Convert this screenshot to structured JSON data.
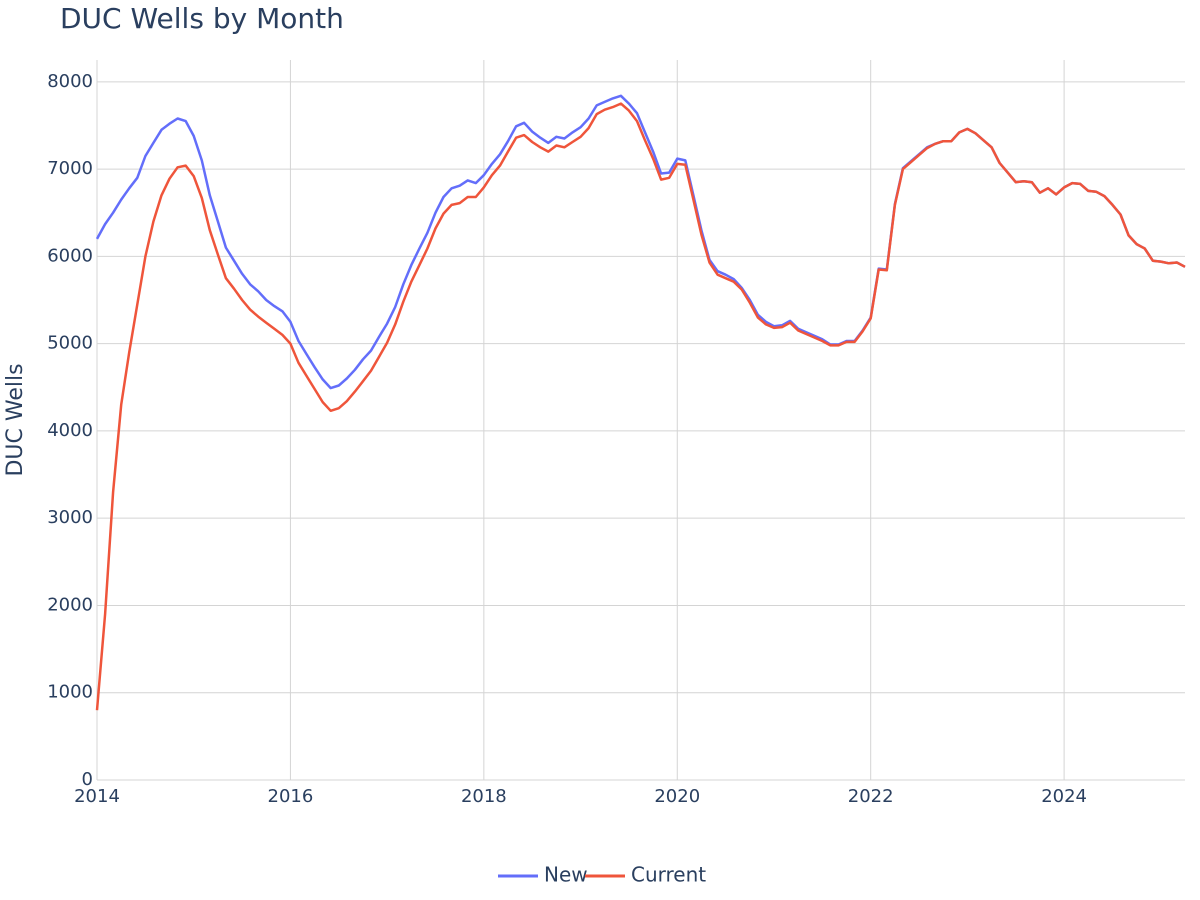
{
  "chart_data": {
    "type": "line",
    "title": "DUC Wells by Month",
    "y_label": "DUC Wells",
    "x": [
      "2014-01",
      "2014-02",
      "2014-03",
      "2014-04",
      "2014-05",
      "2014-06",
      "2014-07",
      "2014-08",
      "2014-09",
      "2014-10",
      "2014-11",
      "2014-12",
      "2015-01",
      "2015-02",
      "2015-03",
      "2015-04",
      "2015-05",
      "2015-06",
      "2015-07",
      "2015-08",
      "2015-09",
      "2015-10",
      "2015-11",
      "2015-12",
      "2016-01",
      "2016-02",
      "2016-03",
      "2016-04",
      "2016-05",
      "2016-06",
      "2016-07",
      "2016-08",
      "2016-09",
      "2016-10",
      "2016-11",
      "2016-12",
      "2017-01",
      "2017-02",
      "2017-03",
      "2017-04",
      "2017-05",
      "2017-06",
      "2017-07",
      "2017-08",
      "2017-09",
      "2017-10",
      "2017-11",
      "2017-12",
      "2018-01",
      "2018-02",
      "2018-03",
      "2018-04",
      "2018-05",
      "2018-06",
      "2018-07",
      "2018-08",
      "2018-09",
      "2018-10",
      "2018-11",
      "2018-12",
      "2019-01",
      "2019-02",
      "2019-03",
      "2019-04",
      "2019-05",
      "2019-06",
      "2019-07",
      "2019-08",
      "2019-09",
      "2019-10",
      "2019-11",
      "2019-12",
      "2020-01",
      "2020-02",
      "2020-03",
      "2020-04",
      "2020-05",
      "2020-06",
      "2020-07",
      "2020-08",
      "2020-09",
      "2020-10",
      "2020-11",
      "2020-12",
      "2021-01",
      "2021-02",
      "2021-03",
      "2021-04",
      "2021-05",
      "2021-06",
      "2021-07",
      "2021-08",
      "2021-09",
      "2021-10",
      "2021-11",
      "2021-12",
      "2022-01",
      "2022-02",
      "2022-03",
      "2022-04",
      "2022-05",
      "2022-06",
      "2022-07",
      "2022-08",
      "2022-09",
      "2022-10",
      "2022-11",
      "2022-12",
      "2023-01",
      "2023-02",
      "2023-03",
      "2023-04",
      "2023-05",
      "2023-06",
      "2023-07",
      "2023-08",
      "2023-09",
      "2023-10",
      "2023-11",
      "2023-12",
      "2024-01",
      "2024-02",
      "2024-03",
      "2024-04",
      "2024-05",
      "2024-06",
      "2024-07",
      "2024-08",
      "2024-09",
      "2024-10",
      "2024-11",
      "2024-12",
      "2025-01",
      "2025-02",
      "2025-03",
      "2025-04"
    ],
    "series": [
      {
        "name": "New",
        "color": "#636efa",
        "values": [
          6200,
          6370,
          6500,
          6650,
          6780,
          6900,
          7150,
          7300,
          7450,
          7520,
          7580,
          7550,
          7380,
          7100,
          6700,
          6400,
          6100,
          5950,
          5800,
          5680,
          5600,
          5500,
          5430,
          5370,
          5250,
          5030,
          4880,
          4730,
          4590,
          4490,
          4520,
          4600,
          4700,
          4820,
          4920,
          5080,
          5230,
          5420,
          5680,
          5900,
          6090,
          6270,
          6500,
          6680,
          6780,
          6810,
          6870,
          6840,
          6930,
          7060,
          7170,
          7320,
          7490,
          7530,
          7430,
          7360,
          7300,
          7370,
          7350,
          7420,
          7480,
          7580,
          7730,
          7770,
          7810,
          7840,
          7750,
          7640,
          7420,
          7200,
          6950,
          6960,
          7120,
          7100,
          6700,
          6300,
          5960,
          5830,
          5790,
          5740,
          5640,
          5500,
          5330,
          5250,
          5200,
          5210,
          5260,
          5170,
          5130,
          5090,
          5050,
          4990,
          4990,
          5030,
          5030,
          5150,
          5300,
          5860,
          5850,
          6600,
          7010,
          7090,
          7170,
          7250,
          7290,
          7320,
          7320,
          7420,
          7460,
          7410,
          7330,
          7250,
          7070,
          6960,
          6850,
          6860,
          6850,
          6730,
          6780,
          6710,
          6790,
          6840,
          6830,
          6750,
          6740,
          6690,
          6590,
          6480,
          6240,
          6140,
          6090,
          5950,
          5940,
          5920,
          5930,
          5880
        ]
      },
      {
        "name": "Current",
        "color": "#ef553b",
        "values": [
          800,
          1900,
          3300,
          4300,
          4900,
          5450,
          6000,
          6400,
          6700,
          6890,
          7020,
          7040,
          6920,
          6670,
          6300,
          6020,
          5750,
          5630,
          5500,
          5390,
          5310,
          5240,
          5170,
          5100,
          5000,
          4780,
          4630,
          4480,
          4330,
          4230,
          4260,
          4340,
          4450,
          4570,
          4690,
          4850,
          5010,
          5220,
          5480,
          5710,
          5900,
          6090,
          6320,
          6490,
          6590,
          6610,
          6680,
          6680,
          6790,
          6930,
          7040,
          7200,
          7360,
          7390,
          7310,
          7250,
          7200,
          7270,
          7250,
          7310,
          7370,
          7470,
          7630,
          7680,
          7710,
          7750,
          7670,
          7550,
          7330,
          7120,
          6880,
          6900,
          7060,
          7050,
          6650,
          6250,
          5930,
          5790,
          5750,
          5710,
          5620,
          5470,
          5300,
          5220,
          5180,
          5190,
          5240,
          5150,
          5110,
          5070,
          5030,
          4980,
          4980,
          5020,
          5020,
          5140,
          5290,
          5850,
          5840,
          6590,
          7000,
          7080,
          7160,
          7240,
          7290,
          7320,
          7320,
          7420,
          7460,
          7410,
          7330,
          7250,
          7070,
          6960,
          6850,
          6860,
          6850,
          6730,
          6780,
          6710,
          6790,
          6840,
          6830,
          6750,
          6740,
          6690,
          6590,
          6480,
          6240,
          6140,
          6090,
          5950,
          5940,
          5920,
          5930,
          5880
        ]
      }
    ],
    "xlim": [
      2014,
      2025.25
    ],
    "xticks": [
      2014,
      2016,
      2018,
      2020,
      2022,
      2024
    ],
    "ylim": [
      0,
      8250
    ],
    "yticks": [
      0,
      1000,
      2000,
      3000,
      4000,
      5000,
      6000,
      7000,
      8000
    ],
    "grid": true,
    "legend": "bottom"
  }
}
